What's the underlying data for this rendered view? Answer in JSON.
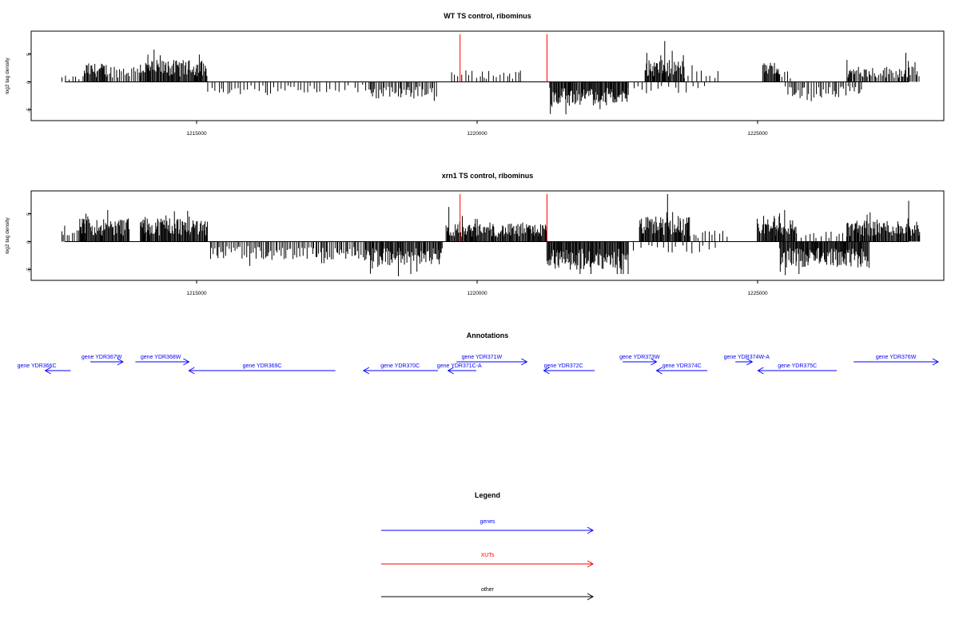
{
  "colors": {
    "gene": "#0000ff",
    "xut": "#ff0000",
    "other": "#000000",
    "bar": "#000000"
  },
  "chart_data": [
    {
      "type": "bar",
      "title": "WT TS control, ribominus",
      "ylabel": "log2 tag density",
      "xlim": [
        1212200,
        1228400
      ],
      "ylim": [
        -7,
        9
      ],
      "x_ticks": [
        1215000,
        1220000,
        1225000
      ],
      "x_tick_labels": [
        "1215000",
        "1220000",
        "1225000"
      ],
      "y_ticks": [
        -5,
        0,
        5
      ],
      "y_tick_labels": [
        "-5",
        "0",
        "5"
      ],
      "plus_regions": [
        {
          "start": 1212300,
          "end": 1212700,
          "mean": 0.8,
          "density": 0.25
        },
        {
          "start": 1212700,
          "end": 1213100,
          "mean": 2.4,
          "density": 0.9
        },
        {
          "start": 1213100,
          "end": 1213700,
          "mean": 2.2,
          "density": 0.5
        },
        {
          "start": 1213700,
          "end": 1214900,
          "mean": 2.8,
          "density": 1.0
        },
        {
          "start": 1219250,
          "end": 1220500,
          "mean": 1.5,
          "density": 0.25
        },
        {
          "start": 1222700,
          "end": 1223400,
          "mean": 2.8,
          "density": 1.0
        },
        {
          "start": 1223400,
          "end": 1224000,
          "mean": 1.5,
          "density": 0.2
        },
        {
          "start": 1224800,
          "end": 1225100,
          "mean": 2.6,
          "density": 1.0
        },
        {
          "start": 1225100,
          "end": 1225300,
          "mean": 1.4,
          "density": 0.3
        },
        {
          "start": 1226300,
          "end": 1227600,
          "mean": 2.0,
          "density": 0.6
        }
      ],
      "minus_regions": [
        {
          "start": 1214900,
          "end": 1216800,
          "mean": 1.6,
          "density": 0.25
        },
        {
          "start": 1216800,
          "end": 1217800,
          "mean": 1.4,
          "density": 0.15
        },
        {
          "start": 1217800,
          "end": 1219000,
          "mean": 2.2,
          "density": 0.5
        },
        {
          "start": 1221000,
          "end": 1222400,
          "mean": 3.0,
          "density": 1.0
        },
        {
          "start": 1222400,
          "end": 1223800,
          "mean": 1.5,
          "density": 0.15
        },
        {
          "start": 1225200,
          "end": 1226600,
          "mean": 2.0,
          "density": 0.4
        }
      ],
      "xut_markers": [
        1219400,
        1220950
      ],
      "xut_height": 8.5,
      "peaks": [
        [
          1223050,
          7.3
        ],
        [
          1227350,
          5.2
        ]
      ]
    },
    {
      "type": "bar",
      "title": "xrn1 TS control, ribominus",
      "ylabel": "log2 tag density",
      "xlim": [
        1212200,
        1228400
      ],
      "ylim": [
        -7,
        9
      ],
      "x_ticks": [
        1215000,
        1220000,
        1225000
      ],
      "x_tick_labels": [
        "1215000",
        "1220000",
        "1225000"
      ],
      "y_ticks": [
        -5,
        0,
        5
      ],
      "y_tick_labels": [
        "-5",
        "0",
        "5"
      ],
      "plus_regions": [
        {
          "start": 1212300,
          "end": 1212600,
          "mean": 1.5,
          "density": 0.3
        },
        {
          "start": 1212600,
          "end": 1213500,
          "mean": 3.0,
          "density": 1.0
        },
        {
          "start": 1213700,
          "end": 1214900,
          "mean": 3.2,
          "density": 1.0
        },
        {
          "start": 1219150,
          "end": 1220950,
          "mean": 2.3,
          "density": 1.0
        },
        {
          "start": 1222600,
          "end": 1223500,
          "mean": 3.2,
          "density": 1.0
        },
        {
          "start": 1223500,
          "end": 1224200,
          "mean": 1.4,
          "density": 0.2
        },
        {
          "start": 1224700,
          "end": 1225400,
          "mean": 3.0,
          "density": 1.0
        },
        {
          "start": 1225400,
          "end": 1226300,
          "mean": 1.3,
          "density": 0.2
        },
        {
          "start": 1226300,
          "end": 1227600,
          "mean": 2.8,
          "density": 1.0
        }
      ],
      "minus_regions": [
        {
          "start": 1214950,
          "end": 1217700,
          "mean": 2.3,
          "density": 0.5
        },
        {
          "start": 1217700,
          "end": 1219100,
          "mean": 3.0,
          "density": 0.9
        },
        {
          "start": 1220950,
          "end": 1222400,
          "mean": 3.6,
          "density": 1.0
        },
        {
          "start": 1222400,
          "end": 1224000,
          "mean": 1.5,
          "density": 0.15
        },
        {
          "start": 1225100,
          "end": 1226700,
          "mean": 3.3,
          "density": 1.0
        }
      ],
      "xut_markers": [
        1219400,
        1220950
      ],
      "xut_height": 8.5,
      "peaks": [
        [
          1219200,
          6.2
        ],
        [
          1223100,
          8.5
        ],
        [
          1227400,
          7.3
        ],
        [
          1218300,
          -6.2
        ],
        [
          1225200,
          -6.0
        ]
      ]
    }
  ],
  "annotations": {
    "title": "Annotations",
    "genes": [
      {
        "label": "gene YDR366C",
        "start": 1212450,
        "end": 1212900,
        "strand": "-",
        "row": 1,
        "label_x": 1212300
      },
      {
        "label": "gene YDR367W",
        "start": 1213250,
        "end": 1213830,
        "strand": "+",
        "row": 0,
        "label_x": 1213450
      },
      {
        "label": "gene YDR368W",
        "start": 1214050,
        "end": 1215000,
        "strand": "+",
        "row": 0,
        "label_x": 1214500
      },
      {
        "label": "gene YDR369C",
        "start": 1215000,
        "end": 1217600,
        "strand": "-",
        "row": 1,
        "label_x": 1216300
      },
      {
        "label": "gene YDR370C",
        "start": 1218100,
        "end": 1219420,
        "strand": "-",
        "row": 1,
        "label_x": 1218750
      },
      {
        "label": "gene YDR371C-A",
        "start": 1219600,
        "end": 1220100,
        "strand": "-",
        "row": 1,
        "label_x": 1219800
      },
      {
        "label": "gene YDR371W",
        "start": 1219750,
        "end": 1221000,
        "strand": "+",
        "row": 0,
        "label_x": 1220200
      },
      {
        "label": "gene YDR372C",
        "start": 1221300,
        "end": 1222200,
        "strand": "-",
        "row": 1,
        "label_x": 1221650
      },
      {
        "label": "gene YDR373W",
        "start": 1222700,
        "end": 1223300,
        "strand": "+",
        "row": 0,
        "label_x": 1223000
      },
      {
        "label": "gene YDR374C",
        "start": 1223300,
        "end": 1224200,
        "strand": "-",
        "row": 1,
        "label_x": 1223750
      },
      {
        "label": "gene YDR374W-A",
        "start": 1224700,
        "end": 1225000,
        "strand": "+",
        "row": 0,
        "label_x": 1224900
      },
      {
        "label": "gene YDR375C",
        "start": 1225100,
        "end": 1226500,
        "strand": "-",
        "row": 1,
        "label_x": 1225800
      },
      {
        "label": "gene YDR376W",
        "start": 1226800,
        "end": 1228300,
        "strand": "+",
        "row": 0,
        "label_x": 1227550
      }
    ]
  },
  "legend": {
    "title": "Legend",
    "items": [
      {
        "label": "genes",
        "color": "#0000ff"
      },
      {
        "label": "XUTs",
        "color": "#ff0000"
      },
      {
        "label": "other",
        "color": "#000000"
      }
    ]
  }
}
